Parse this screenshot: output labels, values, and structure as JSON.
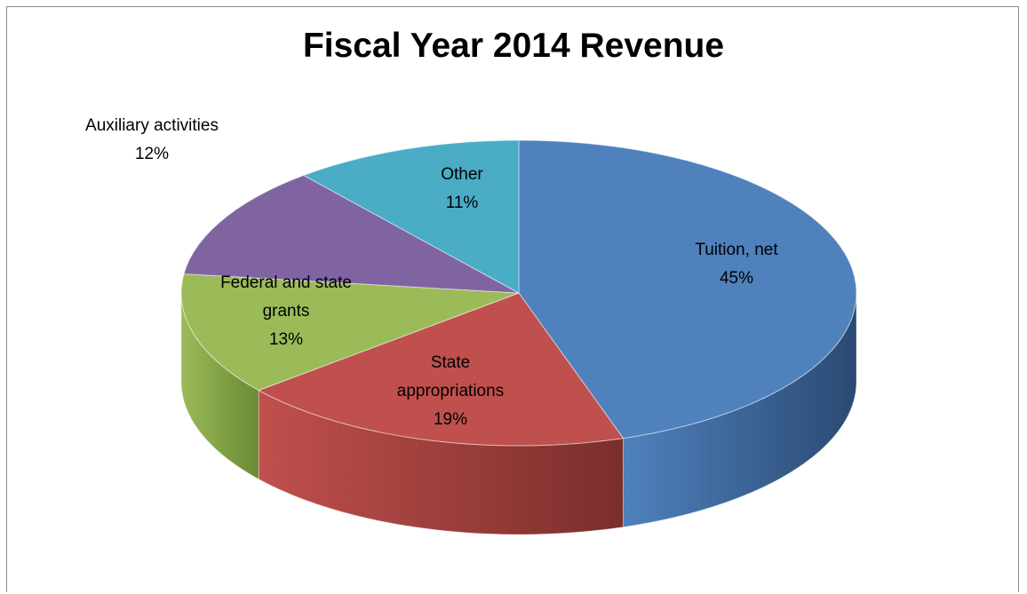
{
  "chart_data": {
    "type": "pie",
    "title": "Fiscal Year 2014 Revenue",
    "slices": [
      {
        "name": "Tuition, net",
        "value": 45,
        "label_lines": [
          "Tuition, net",
          "45%"
        ],
        "color": "#4F81BD",
        "side_color": "#2A4A73"
      },
      {
        "name": "State appropriations",
        "value": 19,
        "label_lines": [
          "State",
          "appropriations",
          "19%"
        ],
        "color": "#C0504D",
        "side_color": "#7A2E2C"
      },
      {
        "name": "Federal and state grants",
        "value": 13,
        "label_lines": [
          "Federal and state",
          "grants",
          "13%"
        ],
        "color": "#9BBB59",
        "side_color": "#6A8A35"
      },
      {
        "name": "Auxiliary activities",
        "value": 12,
        "label_lines": [
          "Auxiliary activities",
          "12%"
        ],
        "color": "#8064A2",
        "side_color": "#5A4478"
      },
      {
        "name": "Other",
        "value": 11,
        "label_lines": [
          "Other",
          "11%"
        ],
        "color": "#4BACC6",
        "side_color": "#2F7A8F"
      }
    ],
    "start_angle_deg": 0,
    "direction": "clockwise",
    "style": "3d-pie",
    "legend": "none"
  }
}
